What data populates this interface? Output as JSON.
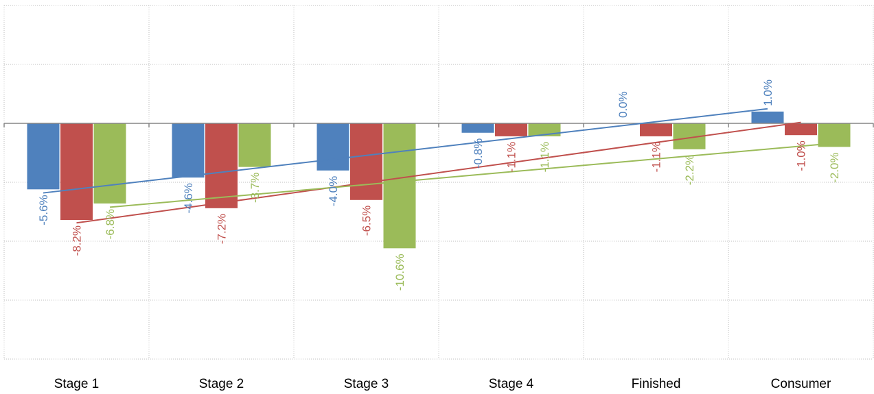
{
  "chart_data": {
    "type": "bar",
    "categories": [
      "Stage 1",
      "Stage 2",
      "Stage 3",
      "Stage 4",
      "Finished",
      "Consumer"
    ],
    "series": [
      {
        "values": [
          -5.6,
          -4.6,
          -4.0,
          -0.8,
          0.0,
          1.0
        ],
        "labels": [
          "-5.6%",
          "-4.6%",
          "-4.0%",
          "-0.8%",
          "0.0%",
          "1.0%"
        ],
        "color": "#4f81bd"
      },
      {
        "values": [
          -8.2,
          -7.2,
          -6.5,
          -1.1,
          -1.1,
          -1.0
        ],
        "labels": [
          "-8.2%",
          "-7.2%",
          "-6.5%",
          "-1.1%",
          "-1.1%",
          "-1.0%"
        ],
        "color": "#c0504d"
      },
      {
        "values": [
          -6.8,
          -3.7,
          -10.6,
          -1.1,
          -2.2,
          -2.0
        ],
        "labels": [
          "-6.8%",
          "-3.7%",
          "-10.6%",
          "-1.1%",
          "-2.2%",
          "-2.0%"
        ],
        "color": "#9bbb59"
      }
    ],
    "trendlines": "linear, one per series",
    "ylim": [
      -20,
      10
    ],
    "y_gridlines": [
      10,
      5,
      0,
      -5,
      -10,
      -15,
      -20
    ],
    "y_tick_labels": "none",
    "grid": true,
    "legend": "none",
    "title": "",
    "xlabel": "",
    "ylabel": ""
  }
}
